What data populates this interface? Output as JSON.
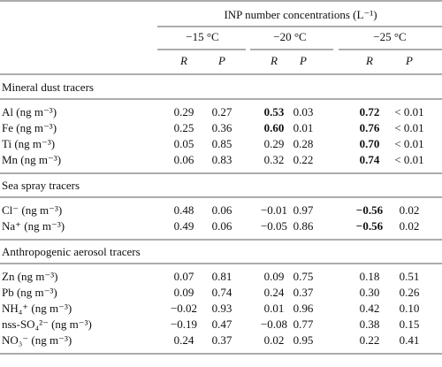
{
  "header": {
    "title": "INP number concentrations (L⁻¹)",
    "groups": [
      "−15 °C",
      "−20 °C",
      "−25 °C"
    ],
    "subheaders": [
      "R",
      "P",
      "R",
      "P",
      "R",
      "P"
    ]
  },
  "sections": [
    {
      "title": "Mineral dust tracers",
      "rows": [
        {
          "label": "Al (ng m⁻³)",
          "cells": [
            "0.29",
            "0.27",
            "0.53",
            "0.03",
            "0.72",
            "< 0.01"
          ],
          "bold": [
            2,
            4
          ]
        },
        {
          "label": "Fe (ng m⁻³)",
          "cells": [
            "0.25",
            "0.36",
            "0.60",
            "0.01",
            "0.76",
            "< 0.01"
          ],
          "bold": [
            2,
            4
          ]
        },
        {
          "label": "Ti (ng m⁻³)",
          "cells": [
            "0.05",
            "0.85",
            "0.29",
            "0.28",
            "0.70",
            "< 0.01"
          ],
          "bold": [
            4
          ]
        },
        {
          "label": "Mn (ng m⁻³)",
          "cells": [
            "0.06",
            "0.83",
            "0.32",
            "0.22",
            "0.74",
            "< 0.01"
          ],
          "bold": [
            4
          ]
        }
      ]
    },
    {
      "title": "Sea spray tracers",
      "rows": [
        {
          "label": "Cl⁻ (ng m⁻³)",
          "cells": [
            "0.48",
            "0.06",
            "−0.01",
            "0.97",
            "−0.56",
            "0.02"
          ],
          "bold": [
            4
          ]
        },
        {
          "label": "Na⁺ (ng m⁻³)",
          "cells": [
            "0.49",
            "0.06",
            "−0.05",
            "0.86",
            "−0.56",
            "0.02"
          ],
          "bold": [
            4
          ]
        }
      ]
    },
    {
      "title": "Anthropogenic aerosol tracers",
      "rows": [
        {
          "label": "Zn (ng m⁻³)",
          "cells": [
            "0.07",
            "0.81",
            "0.09",
            "0.75",
            "0.18",
            "0.51"
          ]
        },
        {
          "label": "Pb (ng m⁻³)",
          "cells": [
            "0.09",
            "0.74",
            "0.24",
            "0.37",
            "0.30",
            "0.26"
          ]
        },
        {
          "label": "NH₄⁺ (ng m⁻³)",
          "cells": [
            "−0.02",
            "0.93",
            "0.01",
            "0.96",
            "0.42",
            "0.10"
          ]
        },
        {
          "label": "nss-SO₄²⁻ (ng m⁻³)",
          "cells": [
            "−0.19",
            "0.47",
            "−0.08",
            "0.77",
            "0.38",
            "0.15"
          ]
        },
        {
          "label": "NO₃⁻ (ng m⁻³)",
          "cells": [
            "0.24",
            "0.37",
            "0.02",
            "0.95",
            "0.22",
            "0.41"
          ]
        }
      ]
    }
  ]
}
